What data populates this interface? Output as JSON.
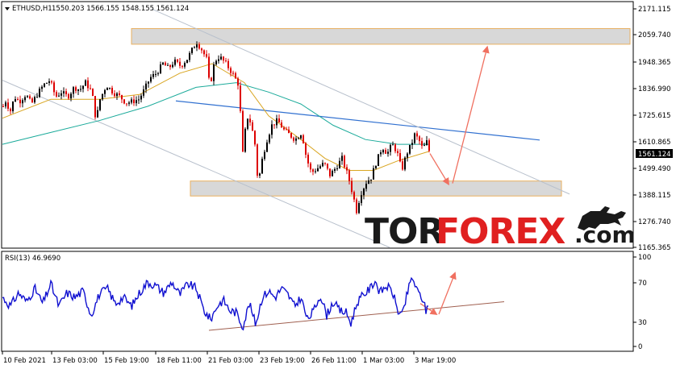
{
  "header": {
    "symbol_label": "ETHUSD,H1",
    "ohlc_label": "1550.203 1566.155 1548.155 1561.124"
  },
  "price_scale": {
    "ticks": [
      "2171.115",
      "2059.740",
      "1948.365",
      "1836.990",
      "1725.615",
      "1610.865",
      "1499.490",
      "1388.115",
      "1276.740",
      "1165.365"
    ],
    "current_price_label": "1561.124"
  },
  "rsi_panel": {
    "label": "RSI(13) 46.9690",
    "ticks": [
      "100",
      "70",
      "30",
      "0"
    ]
  },
  "time_axis": {
    "labels": [
      "10 Feb 2021",
      "13 Feb 03:00",
      "15 Feb 19:00",
      "18 Feb 11:00",
      "21 Feb 03:00",
      "23 Feb 19:00",
      "26 Feb 11:00",
      "1 Mar 03:00",
      "3 Mar 19:00"
    ]
  },
  "watermark": {
    "part1": "TOR",
    "part2": "FOREX",
    "part3": ".com"
  },
  "colors": {
    "bull": "#000000",
    "bear": "#dd0000",
    "ma_fast": "#d9a520",
    "ma_slow": "#1aaa9a",
    "trendline": "#3070d0",
    "channel": "#b8c0cc",
    "arrow": "#f07060",
    "rsi": "#1010d0",
    "rsi_support": "#a06050",
    "zone_fill": "#d8d8d8",
    "zone_border": "#e8b060"
  },
  "chart_data": {
    "type": "candlestick",
    "symbol": "ETHUSD",
    "timeframe": "H1",
    "ohlc_last": {
      "open": 1550.203,
      "high": 1566.155,
      "low": 1548.155,
      "close": 1561.124
    },
    "ylim": [
      1165.365,
      2171.115
    ],
    "current_price": 1561.124,
    "price_path": [
      {
        "t": 0,
        "p": 1760
      },
      {
        "t": 4,
        "p": 1790
      },
      {
        "t": 8,
        "p": 1730
      },
      {
        "t": 14,
        "p": 1800
      },
      {
        "t": 20,
        "p": 1780
      },
      {
        "t": 28,
        "p": 1810
      },
      {
        "t": 35,
        "p": 1770
      },
      {
        "t": 42,
        "p": 1810
      },
      {
        "t": 50,
        "p": 1850
      },
      {
        "t": 58,
        "p": 1870
      },
      {
        "t": 65,
        "p": 1800
      },
      {
        "t": 72,
        "p": 1820
      },
      {
        "t": 80,
        "p": 1800
      },
      {
        "t": 88,
        "p": 1840
      },
      {
        "t": 95,
        "p": 1830
      },
      {
        "t": 102,
        "p": 1860
      },
      {
        "t": 110,
        "p": 1820
      },
      {
        "t": 115,
        "p": 1700
      },
      {
        "t": 120,
        "p": 1790
      },
      {
        "t": 128,
        "p": 1850
      },
      {
        "t": 136,
        "p": 1820
      },
      {
        "t": 145,
        "p": 1800
      },
      {
        "t": 152,
        "p": 1775
      },
      {
        "t": 160,
        "p": 1780
      },
      {
        "t": 168,
        "p": 1790
      },
      {
        "t": 175,
        "p": 1830
      },
      {
        "t": 182,
        "p": 1880
      },
      {
        "t": 190,
        "p": 1900
      },
      {
        "t": 198,
        "p": 1940
      },
      {
        "t": 205,
        "p": 1920
      },
      {
        "t": 212,
        "p": 1950
      },
      {
        "t": 220,
        "p": 1930
      },
      {
        "t": 228,
        "p": 1960
      },
      {
        "t": 236,
        "p": 2010
      },
      {
        "t": 240,
        "p": 2030
      },
      {
        "t": 246,
        "p": 2000
      },
      {
        "t": 252,
        "p": 1960
      },
      {
        "t": 256,
        "p": 1840
      },
      {
        "t": 262,
        "p": 1950
      },
      {
        "t": 268,
        "p": 1970
      },
      {
        "t": 276,
        "p": 1940
      },
      {
        "t": 284,
        "p": 1900
      },
      {
        "t": 292,
        "p": 1850
      },
      {
        "t": 297,
        "p": 1560
      },
      {
        "t": 302,
        "p": 1720
      },
      {
        "t": 307,
        "p": 1690
      },
      {
        "t": 312,
        "p": 1600
      },
      {
        "t": 316,
        "p": 1430
      },
      {
        "t": 320,
        "p": 1520
      },
      {
        "t": 326,
        "p": 1610
      },
      {
        "t": 333,
        "p": 1680
      },
      {
        "t": 340,
        "p": 1700
      },
      {
        "t": 348,
        "p": 1660
      },
      {
        "t": 355,
        "p": 1640
      },
      {
        "t": 362,
        "p": 1620
      },
      {
        "t": 370,
        "p": 1650
      },
      {
        "t": 376,
        "p": 1540
      },
      {
        "t": 382,
        "p": 1480
      },
      {
        "t": 390,
        "p": 1500
      },
      {
        "t": 398,
        "p": 1520
      },
      {
        "t": 405,
        "p": 1470
      },
      {
        "t": 412,
        "p": 1500
      },
      {
        "t": 420,
        "p": 1540
      },
      {
        "t": 428,
        "p": 1460
      },
      {
        "t": 434,
        "p": 1380
      },
      {
        "t": 438,
        "p": 1320
      },
      {
        "t": 443,
        "p": 1390
      },
      {
        "t": 450,
        "p": 1440
      },
      {
        "t": 456,
        "p": 1460
      },
      {
        "t": 462,
        "p": 1520
      },
      {
        "t": 470,
        "p": 1590
      },
      {
        "t": 476,
        "p": 1560
      },
      {
        "t": 482,
        "p": 1600
      },
      {
        "t": 488,
        "p": 1570
      },
      {
        "t": 494,
        "p": 1490
      },
      {
        "t": 500,
        "p": 1560
      },
      {
        "t": 506,
        "p": 1600
      },
      {
        "t": 510,
        "p": 1640
      },
      {
        "t": 515,
        "p": 1620
      },
      {
        "t": 520,
        "p": 1580
      },
      {
        "t": 525,
        "p": 1610
      },
      {
        "t": 529,
        "p": 1561
      }
    ],
    "moving_averages": [
      {
        "points": [
          {
            "t": 0,
            "p": 1710
          },
          {
            "t": 60,
            "p": 1790
          },
          {
            "t": 120,
            "p": 1790
          },
          {
            "t": 170,
            "p": 1810
          },
          {
            "t": 220,
            "p": 1900
          },
          {
            "t": 260,
            "p": 1940
          },
          {
            "t": 300,
            "p": 1860
          },
          {
            "t": 330,
            "p": 1720
          },
          {
            "t": 370,
            "p": 1620
          },
          {
            "t": 400,
            "p": 1540
          },
          {
            "t": 430,
            "p": 1490
          },
          {
            "t": 460,
            "p": 1490
          },
          {
            "t": 490,
            "p": 1530
          },
          {
            "t": 529,
            "p": 1570
          }
        ]
      },
      {
        "points": [
          {
            "t": 0,
            "p": 1600
          },
          {
            "t": 60,
            "p": 1650
          },
          {
            "t": 120,
            "p": 1700
          },
          {
            "t": 180,
            "p": 1760
          },
          {
            "t": 240,
            "p": 1840
          },
          {
            "t": 290,
            "p": 1860
          },
          {
            "t": 330,
            "p": 1820
          },
          {
            "t": 370,
            "p": 1770
          },
          {
            "t": 410,
            "p": 1680
          },
          {
            "t": 450,
            "p": 1620
          },
          {
            "t": 490,
            "p": 1600
          },
          {
            "t": 529,
            "p": 1600
          }
        ]
      }
    ],
    "rsi": {
      "period": 13,
      "last": 46.969,
      "ylim": [
        0,
        100
      ],
      "levels": [
        70,
        30
      ],
      "path": [
        {
          "t": 0,
          "v": 55
        },
        {
          "t": 10,
          "v": 45
        },
        {
          "t": 20,
          "v": 60
        },
        {
          "t": 30,
          "v": 50
        },
        {
          "t": 40,
          "v": 65
        },
        {
          "t": 50,
          "v": 48
        },
        {
          "t": 60,
          "v": 70
        },
        {
          "t": 70,
          "v": 45
        },
        {
          "t": 80,
          "v": 60
        },
        {
          "t": 90,
          "v": 55
        },
        {
          "t": 100,
          "v": 62
        },
        {
          "t": 110,
          "v": 35
        },
        {
          "t": 120,
          "v": 58
        },
        {
          "t": 130,
          "v": 65
        },
        {
          "t": 140,
          "v": 48
        },
        {
          "t": 150,
          "v": 55
        },
        {
          "t": 160,
          "v": 45
        },
        {
          "t": 170,
          "v": 60
        },
        {
          "t": 180,
          "v": 72
        },
        {
          "t": 190,
          "v": 68
        },
        {
          "t": 200,
          "v": 60
        },
        {
          "t": 210,
          "v": 72
        },
        {
          "t": 220,
          "v": 58
        },
        {
          "t": 230,
          "v": 70
        },
        {
          "t": 240,
          "v": 65
        },
        {
          "t": 250,
          "v": 40
        },
        {
          "t": 258,
          "v": 30
        },
        {
          "t": 266,
          "v": 45
        },
        {
          "t": 274,
          "v": 52
        },
        {
          "t": 282,
          "v": 40
        },
        {
          "t": 290,
          "v": 38
        },
        {
          "t": 298,
          "v": 22
        },
        {
          "t": 306,
          "v": 48
        },
        {
          "t": 314,
          "v": 25
        },
        {
          "t": 322,
          "v": 55
        },
        {
          "t": 330,
          "v": 62
        },
        {
          "t": 338,
          "v": 55
        },
        {
          "t": 346,
          "v": 65
        },
        {
          "t": 354,
          "v": 58
        },
        {
          "t": 362,
          "v": 45
        },
        {
          "t": 370,
          "v": 55
        },
        {
          "t": 378,
          "v": 30
        },
        {
          "t": 386,
          "v": 40
        },
        {
          "t": 394,
          "v": 58
        },
        {
          "t": 402,
          "v": 35
        },
        {
          "t": 410,
          "v": 50
        },
        {
          "t": 418,
          "v": 40
        },
        {
          "t": 426,
          "v": 38
        },
        {
          "t": 432,
          "v": 26
        },
        {
          "t": 440,
          "v": 50
        },
        {
          "t": 448,
          "v": 58
        },
        {
          "t": 456,
          "v": 65
        },
        {
          "t": 462,
          "v": 74
        },
        {
          "t": 468,
          "v": 60
        },
        {
          "t": 476,
          "v": 68
        },
        {
          "t": 484,
          "v": 60
        },
        {
          "t": 490,
          "v": 40
        },
        {
          "t": 496,
          "v": 35
        },
        {
          "t": 502,
          "v": 60
        },
        {
          "t": 508,
          "v": 78
        },
        {
          "t": 514,
          "v": 62
        },
        {
          "t": 520,
          "v": 55
        },
        {
          "t": 525,
          "v": 40
        },
        {
          "t": 529,
          "v": 47
        }
      ]
    },
    "zones": [
      {
        "t1": 160,
        "t2": 778,
        "p_top": 2088,
        "p_bottom": 2022
      },
      {
        "t1": 233,
        "t2": 693,
        "p_top": 1445,
        "p_bottom": 1382
      }
    ],
    "trendlines": [
      {
        "role": "descending-resistance",
        "t1": 215,
        "p1": 1783,
        "t2": 666,
        "p2": 1618
      },
      {
        "role": "channel-upper",
        "t1": 185,
        "p1": 2171,
        "t2": 703,
        "p2": 1390
      },
      {
        "role": "channel-lower",
        "t1": 0,
        "p1": 1870,
        "t2": 480,
        "p2": 1165
      },
      {
        "role": "rsi-support",
        "t1": 256,
        "v1": 18,
        "t2": 622,
        "v2": 50
      }
    ],
    "projection_arrows": [
      {
        "t1": 530,
        "p1": 1561,
        "t2": 553,
        "p2": 1432
      },
      {
        "t1": 558,
        "p1": 1435,
        "t2": 601,
        "p2": 2010
      },
      {
        "rsi": true,
        "t1": 518,
        "v1": 48,
        "t2": 538,
        "v2": 36
      },
      {
        "rsi": true,
        "t1": 541,
        "v1": 36,
        "t2": 561,
        "v2": 82
      }
    ]
  }
}
